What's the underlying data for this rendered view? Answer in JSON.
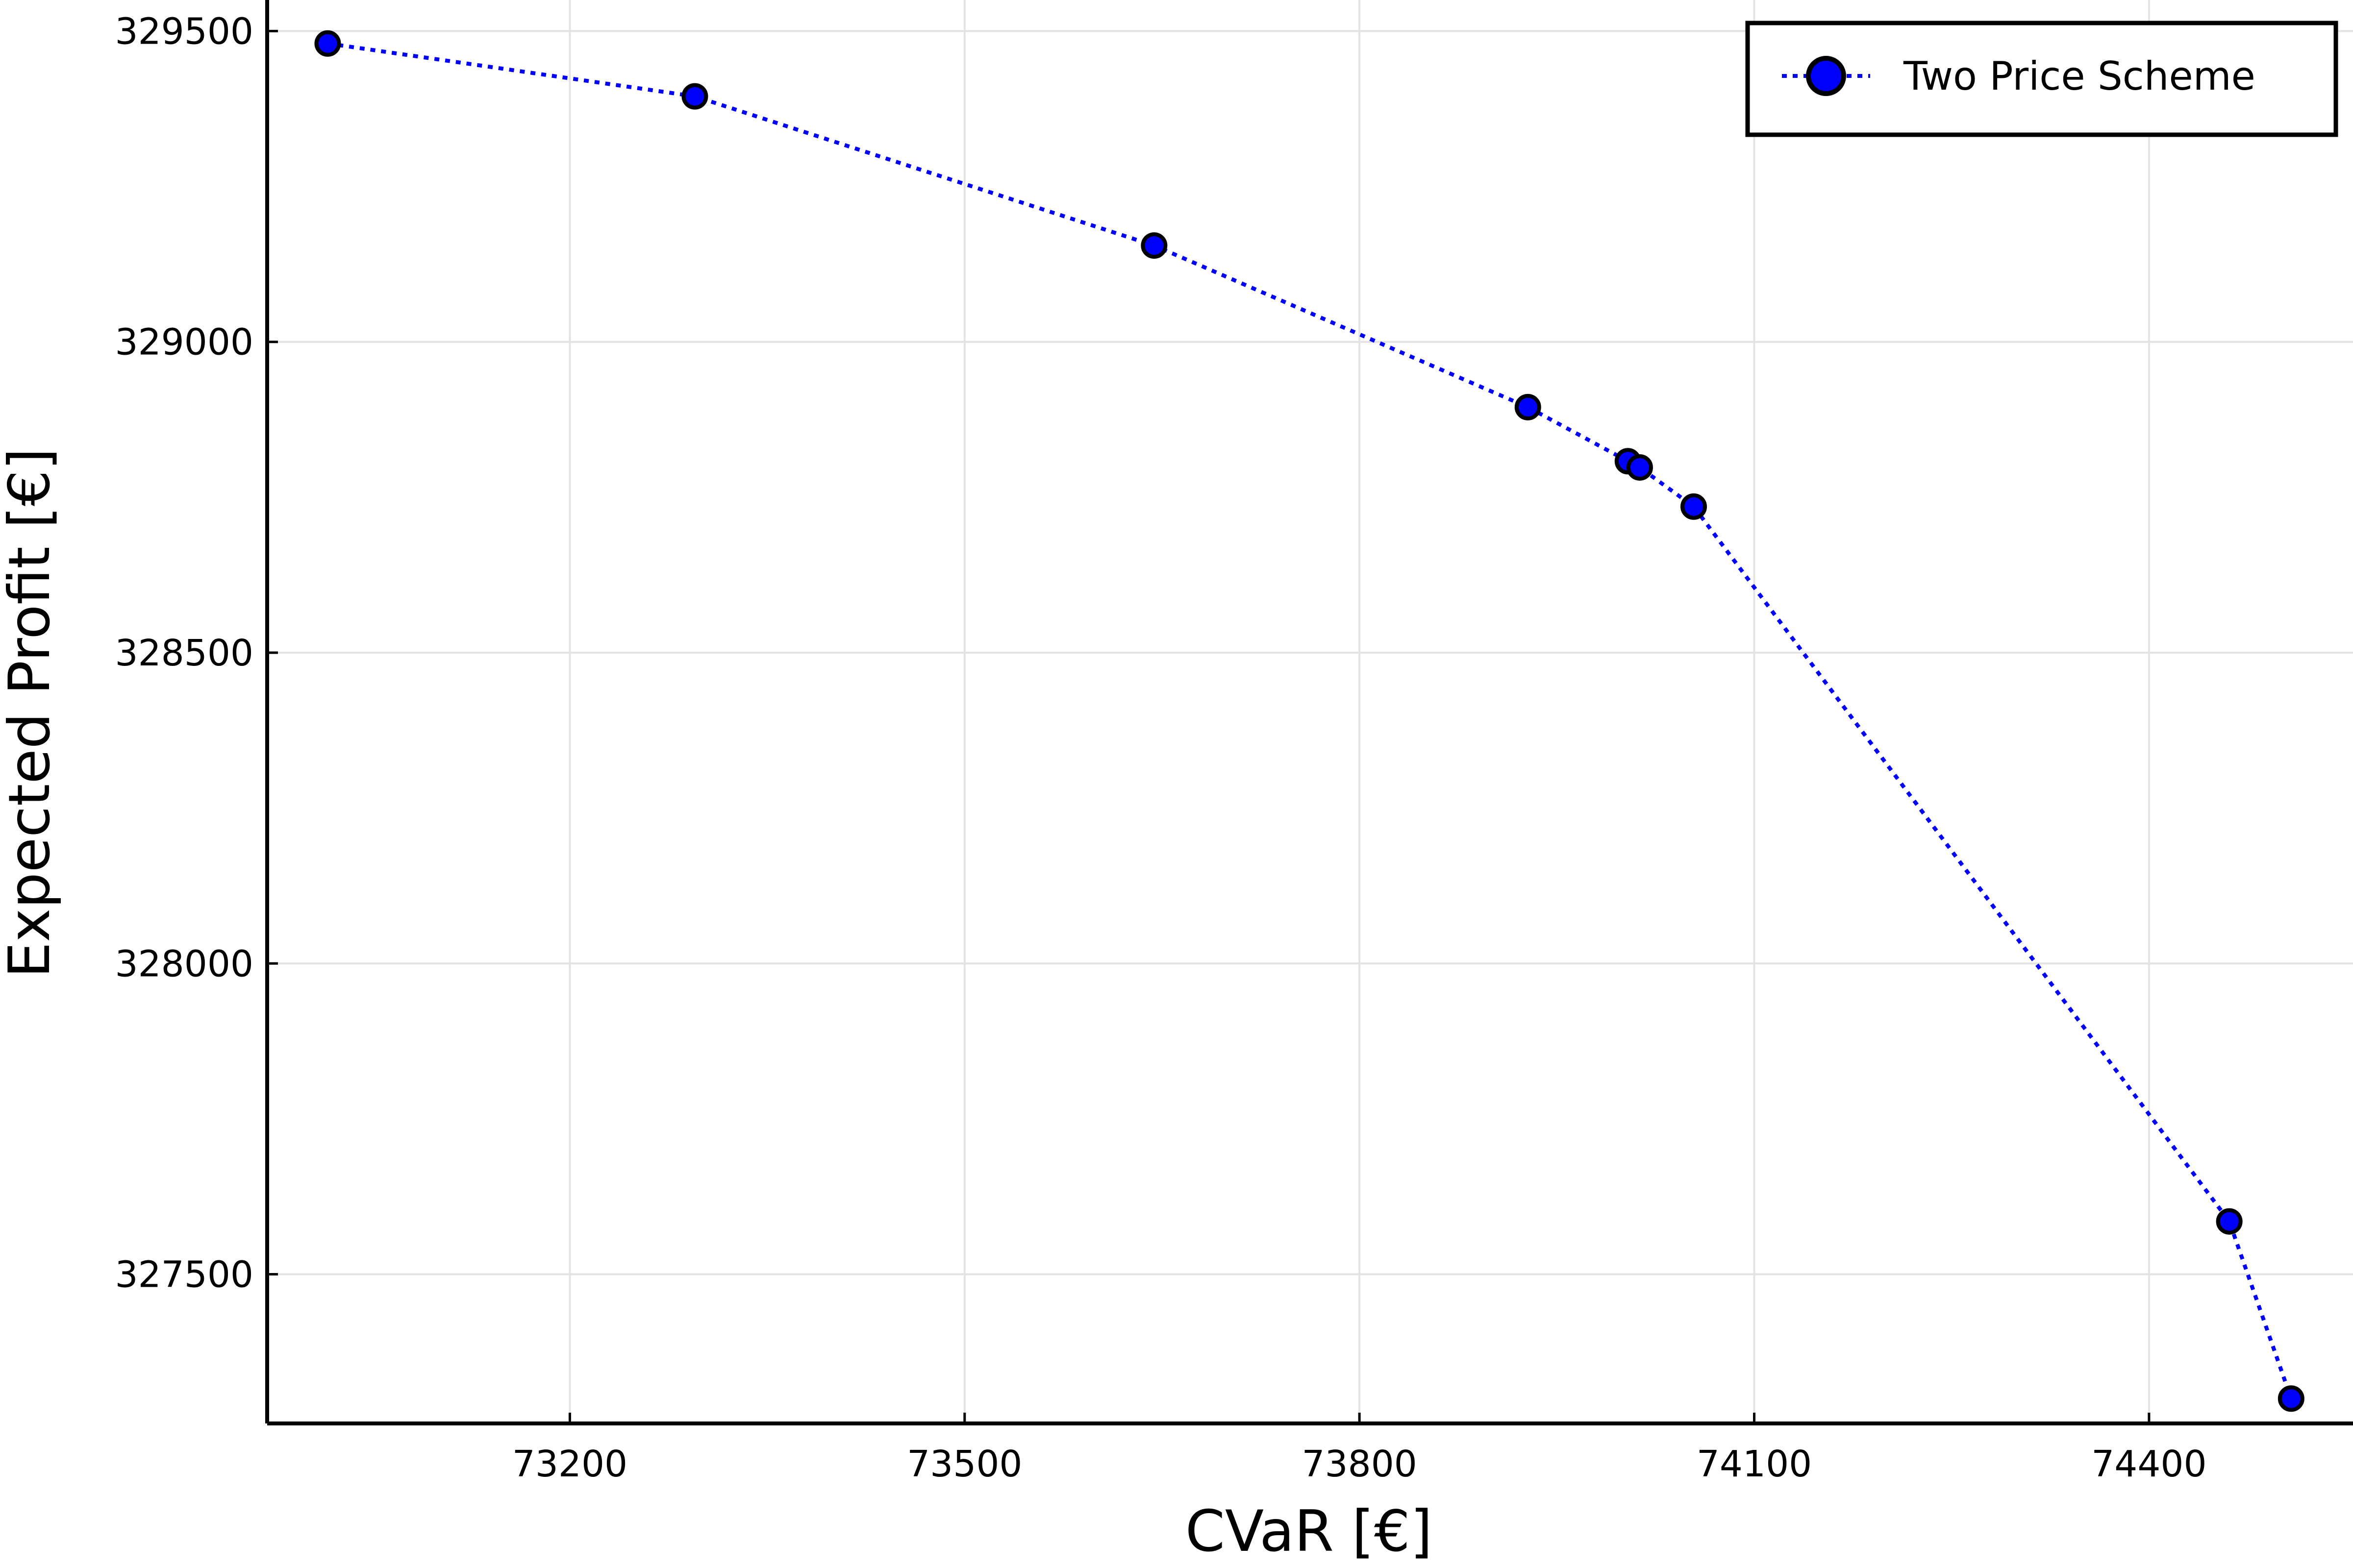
{
  "chart_data": {
    "type": "line",
    "title": "",
    "xlabel": "CVaR [€]",
    "ylabel": "Expected Profit [€]",
    "xlim": [
      72970,
      74555
    ],
    "ylim": [
      327260,
      329550
    ],
    "xticks": [
      73200,
      73500,
      73800,
      74100,
      74400
    ],
    "yticks": [
      327500,
      328000,
      328500,
      329000,
      329500
    ],
    "grid": true,
    "legend_position": "top-right",
    "colors": {
      "line": "#0000ff",
      "marker_fill": "#0000ff",
      "marker_edge": "#000000",
      "grid": "#e3e3e3",
      "axis": "#000000"
    },
    "series": [
      {
        "name": "Two Price Scheme",
        "line_style": "dotted",
        "marker": "circle",
        "x": [
          73016,
          73295,
          73644,
          73928,
          74004,
          74013,
          74054,
          74461,
          74508
        ],
        "y": [
          329480,
          329395,
          329155,
          328895,
          328808,
          328798,
          328735,
          327585,
          327300
        ]
      }
    ]
  }
}
